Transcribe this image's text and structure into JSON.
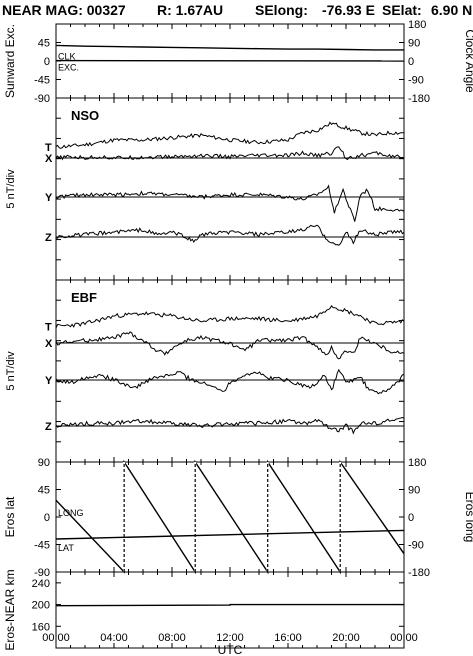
{
  "header": {
    "mission": "NEAR MAG: 00327",
    "range": "R: 1.67AU",
    "selong_label": "SElong:",
    "selong_value": "-76.93 E",
    "selat_label": "SElat:",
    "selat_value": "6.90 N"
  },
  "xaxis": {
    "label": "UTC",
    "ticks": [
      "00:00",
      "04:00",
      "08:00",
      "12:00",
      "16:00",
      "20:00",
      "00:00"
    ]
  },
  "chart_data": [
    {
      "id": "sunward",
      "type": "line",
      "ylabel": "Sunward Exc.",
      "ylabel_right": "Clock Angle",
      "yticks": [
        "45",
        "0",
        "-45",
        "-90"
      ],
      "yticks_right": [
        "180",
        "90",
        "0",
        "-90",
        "-180"
      ],
      "ylim": [
        -90,
        90
      ],
      "ylim_right": [
        -180,
        180
      ],
      "series": [
        {
          "name": "CLK",
          "points": [
            [
              0,
              38
            ],
            [
              1,
              37
            ],
            [
              2,
              36
            ],
            [
              4,
              35
            ],
            [
              6,
              34
            ],
            [
              8,
              33
            ],
            [
              10,
              32
            ],
            [
              12,
              31
            ],
            [
              14,
              30
            ],
            [
              16,
              29
            ],
            [
              18,
              29
            ],
            [
              20,
              28
            ],
            [
              22,
              27
            ],
            [
              24,
              27
            ]
          ]
        },
        {
          "name": "EXC.",
          "points": [
            [
              0,
              1
            ],
            [
              24,
              0
            ]
          ]
        }
      ]
    },
    {
      "id": "nso",
      "type": "line",
      "title": "NSO",
      "ylabel": "5 nT/div",
      "series": [
        {
          "name": "T",
          "points": [
            [
              0,
              2
            ],
            [
              2,
              3
            ],
            [
              4,
              5
            ],
            [
              6,
              5
            ],
            [
              8,
              6
            ],
            [
              10,
              7
            ],
            [
              12,
              5
            ],
            [
              14,
              4
            ],
            [
              16,
              5
            ],
            [
              17,
              8
            ],
            [
              18,
              9
            ],
            [
              19,
              12
            ],
            [
              20,
              10
            ],
            [
              21,
              8
            ],
            [
              22,
              7
            ],
            [
              23,
              8
            ],
            [
              24,
              8
            ]
          ]
        },
        {
          "name": "X",
          "points": [
            [
              0,
              0
            ],
            [
              1,
              0.5
            ],
            [
              2,
              0
            ],
            [
              3,
              0.5
            ],
            [
              4,
              0
            ],
            [
              6,
              0.3
            ],
            [
              8,
              0.5
            ],
            [
              10,
              1
            ],
            [
              12,
              0.5
            ],
            [
              14,
              1
            ],
            [
              16,
              1
            ],
            [
              17,
              2
            ],
            [
              18,
              1
            ],
            [
              19,
              2
            ],
            [
              19.5,
              5
            ],
            [
              20,
              0
            ],
            [
              21,
              1
            ],
            [
              22,
              2
            ],
            [
              23,
              1
            ],
            [
              24,
              0
            ]
          ]
        },
        {
          "name": "Y",
          "points": [
            [
              0,
              0
            ],
            [
              2,
              1
            ],
            [
              4,
              1
            ],
            [
              6,
              1.5
            ],
            [
              8,
              1
            ],
            [
              10,
              0
            ],
            [
              12,
              1
            ],
            [
              14,
              1
            ],
            [
              16,
              0
            ],
            [
              17,
              -1
            ],
            [
              18,
              1
            ],
            [
              18.8,
              4
            ],
            [
              19.2,
              -6
            ],
            [
              19.8,
              3
            ],
            [
              20.2,
              -4
            ],
            [
              20.6,
              -10
            ],
            [
              21,
              1
            ],
            [
              21.5,
              3
            ],
            [
              22,
              -5
            ],
            [
              23,
              -5
            ],
            [
              24,
              -6
            ]
          ]
        },
        {
          "name": "Z",
          "points": [
            [
              0,
              0
            ],
            [
              2,
              1
            ],
            [
              4,
              2
            ],
            [
              6,
              3
            ],
            [
              7,
              1
            ],
            [
              8,
              2
            ],
            [
              9,
              0
            ],
            [
              9.5,
              -2
            ],
            [
              10,
              1
            ],
            [
              12,
              2
            ],
            [
              14,
              1
            ],
            [
              16,
              2
            ],
            [
              17,
              3
            ],
            [
              18,
              5
            ],
            [
              18.5,
              0
            ],
            [
              19,
              -2
            ],
            [
              19.5,
              -4
            ],
            [
              20,
              2
            ],
            [
              20.5,
              -2
            ],
            [
              21,
              3
            ],
            [
              22,
              1
            ],
            [
              23,
              2
            ],
            [
              24,
              2
            ]
          ]
        }
      ]
    },
    {
      "id": "ebf",
      "type": "line",
      "title": "EBF",
      "ylabel": "5 nT/div",
      "series": [
        {
          "name": "T",
          "points": [
            [
              0,
              1
            ],
            [
              2,
              2
            ],
            [
              4,
              5
            ],
            [
              6,
              6
            ],
            [
              8,
              5
            ],
            [
              10,
              3
            ],
            [
              12,
              4
            ],
            [
              14,
              4
            ],
            [
              16,
              3
            ],
            [
              18,
              5
            ],
            [
              19,
              9
            ],
            [
              20,
              7
            ],
            [
              21,
              5
            ],
            [
              22,
              2
            ],
            [
              24,
              3
            ]
          ]
        },
        {
          "name": "X",
          "points": [
            [
              0,
              0
            ],
            [
              2,
              1
            ],
            [
              4,
              2
            ],
            [
              5,
              4
            ],
            [
              6,
              1
            ],
            [
              7,
              -3
            ],
            [
              7.5,
              -4
            ],
            [
              8,
              -2
            ],
            [
              9,
              1
            ],
            [
              10,
              2
            ],
            [
              12,
              0
            ],
            [
              12.8,
              -3
            ],
            [
              13.5,
              -1
            ],
            [
              14,
              1
            ],
            [
              16,
              1
            ],
            [
              17,
              2
            ],
            [
              18,
              -1
            ],
            [
              18.6,
              -5
            ],
            [
              19,
              -2
            ],
            [
              19.5,
              -6
            ],
            [
              20,
              -3
            ],
            [
              20.5,
              -4
            ],
            [
              21,
              2
            ],
            [
              22,
              0
            ],
            [
              23,
              -3
            ],
            [
              24,
              -4
            ]
          ]
        },
        {
          "name": "Y",
          "points": [
            [
              0,
              0
            ],
            [
              1,
              -1
            ],
            [
              2,
              1
            ],
            [
              3,
              2
            ],
            [
              4,
              0
            ],
            [
              5,
              -2
            ],
            [
              5.6,
              -3
            ],
            [
              6,
              -1
            ],
            [
              7,
              1
            ],
            [
              8,
              2
            ],
            [
              8.6,
              3
            ],
            [
              9,
              1
            ],
            [
              10,
              -1
            ],
            [
              11,
              -3
            ],
            [
              11.6,
              -4
            ],
            [
              12,
              -1
            ],
            [
              13,
              2
            ],
            [
              13.8,
              3
            ],
            [
              14.5,
              1
            ],
            [
              16,
              0
            ],
            [
              17,
              -2
            ],
            [
              17.5,
              -3
            ],
            [
              18,
              -1
            ],
            [
              18.5,
              2
            ],
            [
              19,
              -4
            ],
            [
              19.5,
              4
            ],
            [
              20,
              -1
            ],
            [
              21,
              1
            ],
            [
              21.5,
              -3
            ],
            [
              22,
              -5
            ],
            [
              23,
              -4
            ],
            [
              24,
              2
            ]
          ]
        },
        {
          "name": "Z",
          "points": [
            [
              0,
              0
            ],
            [
              2,
              1
            ],
            [
              4,
              1
            ],
            [
              6,
              2
            ],
            [
              8,
              1
            ],
            [
              10,
              0
            ],
            [
              12,
              1
            ],
            [
              14,
              1
            ],
            [
              16,
              2
            ],
            [
              17,
              1
            ],
            [
              18,
              2
            ],
            [
              19,
              -1
            ],
            [
              19.5,
              -2
            ],
            [
              20,
              0
            ],
            [
              20.5,
              -2
            ],
            [
              21,
              1
            ],
            [
              22,
              1
            ],
            [
              23,
              2
            ],
            [
              24,
              3
            ]
          ]
        }
      ]
    },
    {
      "id": "eros",
      "type": "line",
      "ylabel": "Eros lat",
      "ylabel_right": "Eros long",
      "yticks": [
        "90",
        "45",
        "0",
        "-45",
        "-90"
      ],
      "yticks_right": [
        "180",
        "90",
        "0",
        "-90",
        "-180"
      ],
      "ylim": [
        -90,
        90
      ],
      "ylim_right": [
        -180,
        180
      ],
      "series": [
        {
          "name": "LONG",
          "points": [
            [
              0,
              55
            ],
            [
              4.7,
              -180
            ],
            [
              4.7,
              180
            ],
            [
              9.6,
              -180
            ],
            [
              9.6,
              180
            ],
            [
              14.6,
              -180
            ],
            [
              14.6,
              180
            ],
            [
              19.6,
              -180
            ],
            [
              19.6,
              180
            ],
            [
              24,
              -120
            ]
          ]
        },
        {
          "name": "LAT",
          "points": [
            [
              0,
              -36
            ],
            [
              24,
              -22
            ]
          ]
        }
      ]
    },
    {
      "id": "range",
      "type": "line",
      "ylabel": "Eros-NEAR km",
      "yticks": [
        "240",
        "200",
        "160"
      ],
      "ylim": [
        120,
        260
      ],
      "series": [
        {
          "name": "range",
          "points": [
            [
              0,
              198
            ],
            [
              12,
              199
            ],
            [
              12,
              200
            ],
            [
              24,
              200
            ]
          ]
        }
      ]
    }
  ]
}
